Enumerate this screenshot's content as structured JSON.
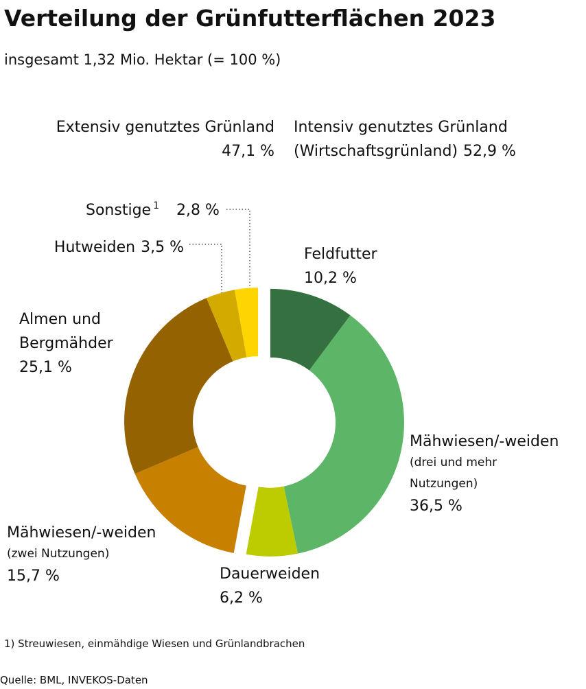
{
  "chart_data": {
    "type": "donut",
    "title": "Verteilung der Grünfutterflächen 2023",
    "subtitle": "insgesamt 1,32 Mio. Hektar (= 100 %)",
    "groups": [
      {
        "name": "Intensiv genutztes Grünland",
        "note": "(Wirtschaftsgrünland)",
        "value": 52.9,
        "value_label": "52,9 %"
      },
      {
        "name": "Extensiv genutztes Grünland",
        "value": 47.1,
        "value_label": "47,1 %"
      }
    ],
    "segments": [
      {
        "label": [
          "Feldfutter"
        ],
        "value": 10.2,
        "value_label": "10,2 %",
        "color": "#357041",
        "group": 0
      },
      {
        "label": [
          "Mähwiesen/-weiden"
        ],
        "note": [
          "(drei und mehr",
          "Nutzungen)"
        ],
        "value": 36.5,
        "value_label": "36,5 %",
        "color": "#5db668",
        "group": 0
      },
      {
        "label": [
          "Dauerweiden"
        ],
        "value": 6.2,
        "value_label": "6,2 %",
        "color": "#bccc00",
        "group": 0
      },
      {
        "label": [
          "Mähwiesen/-weiden"
        ],
        "note": [
          "(zwei Nutzungen)"
        ],
        "value": 15.7,
        "value_label": "15,7 %",
        "color": "#c78000",
        "group": 1
      },
      {
        "label": [
          "Almen und",
          "Bergmähder"
        ],
        "value": 25.1,
        "value_label": "25,1 %",
        "color": "#956200",
        "group": 1
      },
      {
        "label": [
          "Hutweiden"
        ],
        "value": 3.5,
        "value_label": "3,5 %",
        "color": "#d3aa00",
        "group": 1
      },
      {
        "label": [
          "Sonstige"
        ],
        "label_sup": "1",
        "value": 2.8,
        "value_label": "2,8 %",
        "color": "#ffd500",
        "group": 1
      }
    ],
    "footnote": "1) Streuwiesen, einmähdige Wiesen und Grünlandbrachen",
    "source": "Quelle: BML, INVEKOS-Daten"
  }
}
